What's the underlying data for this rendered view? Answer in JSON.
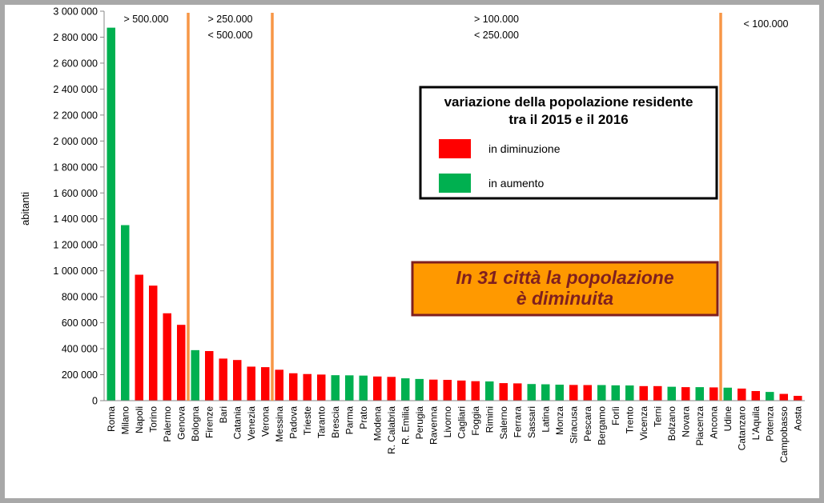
{
  "chart_data": {
    "type": "bar",
    "title": "",
    "xlabel": "",
    "ylabel": "abitanti",
    "ylim": [
      0,
      3000000
    ],
    "yticks": [
      0,
      200000,
      400000,
      600000,
      800000,
      1000000,
      1200000,
      1400000,
      1600000,
      1800000,
      2000000,
      2200000,
      2400000,
      2600000,
      2800000,
      3000000
    ],
    "ytick_labels": [
      "0",
      "200 000",
      "400 000",
      "600 000",
      "800 000",
      "1 000 000",
      "1 200 000",
      "1 400 000",
      "1 600 000",
      "1 800 000",
      "2 000 000",
      "2 200 000",
      "2 400 000",
      "2 600 000",
      "2 800 000",
      "3 000 000"
    ],
    "grid": false,
    "categories": [
      "Roma",
      "Milano",
      "Napoli",
      "Torino",
      "Palermo",
      "Genova",
      "Bologna",
      "Firenze",
      "Bari",
      "Catania",
      "Venezia",
      "Verona",
      "Messina",
      "Padova",
      "Trieste",
      "Taranto",
      "Brescia",
      "Parma",
      "Prato",
      "Modena",
      "R. Calabria",
      "R. Emilia",
      "Perugia",
      "Ravenna",
      "Livorno",
      "Cagliari",
      "Foggia",
      "Rimini",
      "Salerno",
      "Ferrara",
      "Sassari",
      "Latina",
      "Monza",
      "Siracusa",
      "Pescara",
      "Bergamo",
      "Forlì",
      "Trento",
      "Vicenza",
      "Terni",
      "Bolzano",
      "Novara",
      "Piacenza",
      "Ancona",
      "Udine",
      "Catanzaro",
      "L'Aquila",
      "Potenza",
      "Campobasso",
      "Aosta"
    ],
    "values": [
      2873000,
      1352000,
      970000,
      886000,
      673000,
      584000,
      389000,
      382000,
      324000,
      313000,
      262000,
      258000,
      238000,
      211000,
      205000,
      201000,
      196000,
      195000,
      193000,
      186000,
      183000,
      172000,
      167000,
      162000,
      160000,
      155000,
      150000,
      148000,
      135000,
      133000,
      128000,
      126000,
      123000,
      121000,
      120000,
      120000,
      118000,
      117000,
      112000,
      112000,
      107000,
      104000,
      104000,
      102000,
      100000,
      93000,
      74000,
      67000,
      52000,
      37000
    ],
    "status": [
      "in aumento",
      "in aumento",
      "in diminuzione",
      "in diminuzione",
      "in diminuzione",
      "in diminuzione",
      "in aumento",
      "in diminuzione",
      "in diminuzione",
      "in diminuzione",
      "in diminuzione",
      "in diminuzione",
      "in diminuzione",
      "in diminuzione",
      "in diminuzione",
      "in diminuzione",
      "in aumento",
      "in aumento",
      "in aumento",
      "in diminuzione",
      "in diminuzione",
      "in aumento",
      "in aumento",
      "in diminuzione",
      "in diminuzione",
      "in diminuzione",
      "in diminuzione",
      "in aumento",
      "in diminuzione",
      "in diminuzione",
      "in aumento",
      "in aumento",
      "in aumento",
      "in diminuzione",
      "in diminuzione",
      "in aumento",
      "in aumento",
      "in aumento",
      "in diminuzione",
      "in diminuzione",
      "in aumento",
      "in diminuzione",
      "in aumento",
      "in diminuzione",
      "in aumento",
      "in diminuzione",
      "in diminuzione",
      "in aumento",
      "in diminuzione",
      "in diminuzione"
    ],
    "colors": {
      "in diminuzione": "#ff0000",
      "in aumento": "#00b050",
      "divider": "#f79646",
      "callout_fill": "#ff9900",
      "callout_border": "#7f1f1f",
      "callout_text": "#7f1f1f"
    },
    "dividers": [
      {
        "after_category": "Genova",
        "labels": [
          "> 500.000"
        ]
      },
      {
        "after_category": "Verona",
        "labels": [
          "> 250.000",
          "< 500.000"
        ]
      },
      {
        "after_category": "Ancona",
        "labels": [
          "> 100.000",
          "< 250.000"
        ]
      }
    ],
    "last_group_labels": [
      "< 100.000"
    ],
    "legend": {
      "title_lines": [
        "variazione della popolazione residente",
        "tra il 2015 e il 2016"
      ],
      "placement": "center-right",
      "entries": [
        {
          "label": "in diminuzione",
          "status": "in diminuzione"
        },
        {
          "label": "in aumento",
          "status": "in aumento"
        }
      ]
    },
    "annotation": {
      "lines": [
        "In  31 città la popolazione",
        "è diminuita"
      ]
    }
  }
}
